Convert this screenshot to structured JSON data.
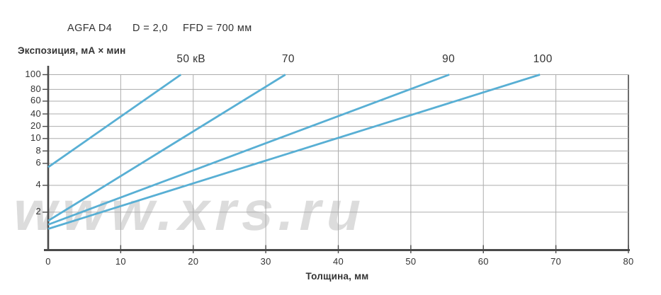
{
  "header": {
    "film": "AGFA D4",
    "density": "D = 2,0",
    "ffd": "FFD = 700 мм"
  },
  "watermark": "www.xrs.ru",
  "colors": {
    "line": "#58AFD4",
    "grid": "#ADADAD",
    "axis": "#4A4A4A",
    "text": "#333333",
    "watermark": "#DCDCDC"
  },
  "chart_data": {
    "type": "line",
    "title": "AGFA D4  D = 2,0  FFD = 700 мм",
    "xlabel": "Толщина, мм",
    "ylabel": "Экспозиция, мА × мин",
    "xlim": [
      0,
      80
    ],
    "x_ticks": [
      0,
      10,
      20,
      30,
      40,
      50,
      60,
      70,
      80
    ],
    "y_scale": "pseudo-log",
    "y_ticks": [
      {
        "value": 100,
        "pos": 0.0
      },
      {
        "value": 80,
        "pos": 0.084
      },
      {
        "value": 60,
        "pos": 0.151
      },
      {
        "value": 40,
        "pos": 0.224
      },
      {
        "value": 20,
        "pos": 0.295
      },
      {
        "value": 10,
        "pos": 0.364
      },
      {
        "value": 8,
        "pos": 0.435
      },
      {
        "value": 6,
        "pos": 0.506
      },
      {
        "value": 4,
        "pos": 0.631
      },
      {
        "value": 2,
        "pos": 0.784
      }
    ],
    "grid": true,
    "legend_position": "above-line-exit",
    "series": [
      {
        "name": "50 кВ",
        "label_x": 19.7,
        "points": [
          [
            0,
            5.6
          ],
          [
            18.3,
            100
          ]
        ]
      },
      {
        "name": "70",
        "label_x": 33.1,
        "points": [
          [
            0,
            1.6
          ],
          [
            32.7,
            100
          ]
        ]
      },
      {
        "name": "90",
        "label_x": 55.2,
        "points": [
          [
            0,
            1.45
          ],
          [
            55.3,
            100
          ]
        ]
      },
      {
        "name": "100",
        "label_x": 68.2,
        "points": [
          [
            0,
            1.3
          ],
          [
            67.8,
            100
          ]
        ]
      }
    ]
  }
}
